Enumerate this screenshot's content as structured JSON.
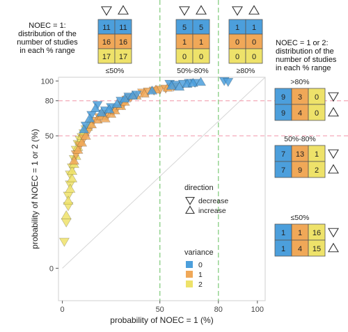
{
  "chart_data": {
    "type": "scatter",
    "xlabel": "probability of NOEC = 1 (%)",
    "ylabel": "probability of NOEC = 1 or 2 (%)",
    "x_ticks": [
      "0",
      "50",
      "80",
      "100"
    ],
    "y_ticks": [
      "0",
      "50",
      "80",
      "100"
    ],
    "xlim": [
      -2,
      104
    ],
    "ylim": [
      -3,
      104
    ],
    "y_scale": "sqrt",
    "reference_lines": {
      "vertical": [
        50,
        80
      ],
      "horizontal": [
        50,
        80
      ],
      "diagonal": true
    },
    "legend": {
      "direction_title": "direction",
      "direction_entries": [
        "decrease",
        "increase"
      ],
      "variance_title": "variance",
      "variance_entries": [
        "0",
        "1",
        "2"
      ],
      "colors": {
        "0": "#4c9fdc",
        "1": "#f0a858",
        "2": "#eee26a"
      }
    },
    "series": [
      {
        "variance": 0,
        "direction": "decrease",
        "points": [
          [
            12,
            58
          ],
          [
            15,
            67
          ],
          [
            18,
            76
          ],
          [
            22,
            71
          ],
          [
            25,
            74
          ],
          [
            30,
            80
          ],
          [
            34,
            84
          ],
          [
            38,
            86
          ],
          [
            55,
            97
          ],
          [
            58,
            96
          ],
          [
            62,
            97
          ],
          [
            65,
            98
          ],
          [
            68,
            98
          ],
          [
            83,
            100
          ],
          [
            85,
            99
          ]
        ]
      },
      {
        "variance": 0,
        "direction": "increase",
        "points": [
          [
            11,
            55
          ],
          [
            14,
            64
          ],
          [
            17,
            73
          ],
          [
            20,
            69
          ],
          [
            24,
            72
          ],
          [
            28,
            77
          ],
          [
            32,
            82
          ],
          [
            36,
            85
          ],
          [
            46,
            90
          ],
          [
            56,
            95
          ],
          [
            60,
            94
          ],
          [
            64,
            97
          ],
          [
            67,
            98
          ],
          [
            71,
            99
          ]
        ]
      },
      {
        "variance": 1,
        "direction": "decrease",
        "points": [
          [
            7,
            37
          ],
          [
            9,
            43
          ],
          [
            11,
            48
          ],
          [
            13,
            53
          ],
          [
            16,
            62
          ],
          [
            19,
            65
          ],
          [
            21,
            68
          ],
          [
            23,
            66
          ],
          [
            26,
            70
          ],
          [
            28,
            73
          ],
          [
            31,
            76
          ],
          [
            33,
            81
          ],
          [
            35,
            83
          ],
          [
            41,
            88
          ],
          [
            44,
            89
          ],
          [
            47,
            90
          ],
          [
            50,
            91
          ],
          [
            53,
            92
          ],
          [
            57,
            94
          ]
        ]
      },
      {
        "variance": 1,
        "direction": "increase",
        "points": [
          [
            6,
            33
          ],
          [
            8,
            40
          ],
          [
            10,
            45
          ],
          [
            12,
            50
          ],
          [
            15,
            59
          ],
          [
            18,
            63
          ],
          [
            20,
            66
          ],
          [
            22,
            64
          ],
          [
            25,
            68
          ],
          [
            27,
            71
          ],
          [
            30,
            75
          ],
          [
            32,
            79
          ],
          [
            38,
            85
          ],
          [
            42,
            87
          ],
          [
            48,
            91
          ],
          [
            54,
            93
          ]
        ]
      },
      {
        "variance": 2,
        "direction": "decrease",
        "points": [
          [
            1,
            2
          ],
          [
            2,
            6
          ],
          [
            3,
            11
          ],
          [
            3,
            15
          ],
          [
            4,
            20
          ],
          [
            4,
            25
          ],
          [
            5,
            29
          ],
          [
            6,
            34
          ],
          [
            7,
            40
          ],
          [
            8,
            44
          ],
          [
            9,
            47
          ],
          [
            10,
            49
          ],
          [
            11,
            52
          ],
          [
            12,
            55
          ]
        ]
      },
      {
        "variance": 2,
        "direction": "increase",
        "points": [
          [
            2,
            8
          ],
          [
            3,
            13
          ],
          [
            4,
            18
          ],
          [
            5,
            23
          ],
          [
            5,
            27
          ],
          [
            6,
            31
          ],
          [
            7,
            36
          ],
          [
            8,
            42
          ],
          [
            9,
            46
          ],
          [
            10,
            50
          ],
          [
            11,
            53
          ],
          [
            13,
            57
          ],
          [
            14,
            60
          ]
        ]
      }
    ],
    "top_note": "NOEC = 1:\ndistribution of the\nnumber of studies\nin each % range",
    "top_tables": [
      {
        "label": "≤50%",
        "decrease": [
          "11",
          "16",
          "17"
        ],
        "increase": [
          "11",
          "16",
          "17"
        ]
      },
      {
        "label": "50%-80%",
        "decrease": [
          "5",
          "1",
          "0"
        ],
        "increase": [
          "5",
          "1",
          "0"
        ]
      },
      {
        "label": "≥80%",
        "decrease": [
          "1",
          "0",
          "0"
        ],
        "increase": [
          "1",
          "0",
          "0"
        ]
      }
    ],
    "right_note": "NOEC = 1 or 2:\ndistribution of the\nnumber of studies\nin each % range",
    "right_tables": [
      {
        "label": ">80%",
        "decrease": [
          "9",
          "3",
          "0"
        ],
        "increase": [
          "9",
          "4",
          "0"
        ]
      },
      {
        "label": "50%-80%",
        "decrease": [
          "7",
          "13",
          "1"
        ],
        "increase": [
          "7",
          "9",
          "2"
        ]
      },
      {
        "label": "≤50%",
        "decrease": [
          "1",
          "1",
          "16"
        ],
        "increase": [
          "1",
          "4",
          "15"
        ]
      }
    ]
  }
}
